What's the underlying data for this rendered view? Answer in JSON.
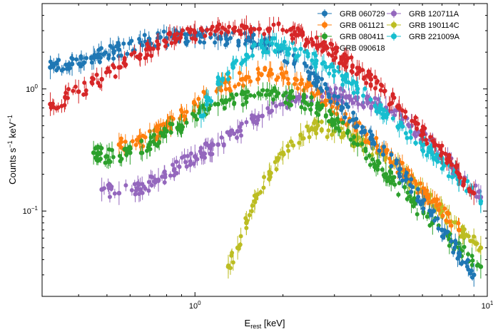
{
  "chart_data": {
    "type": "scatter",
    "title": "",
    "xlabel": {
      "main": "E",
      "sub": "rest",
      "unit": " [keV]"
    },
    "ylabel": {
      "main": "Counts s",
      "sup1": "−1",
      "mid": " keV",
      "sup2": "−1"
    },
    "xscale": "log",
    "yscale": "log",
    "xlim": [
      0.3,
      10
    ],
    "ylim": [
      0.02,
      5
    ],
    "x_ticks": [
      {
        "value": 1,
        "base": "10",
        "exp": "0"
      },
      {
        "value": 10,
        "base": "10",
        "exp": "1"
      }
    ],
    "y_ticks": [
      {
        "value": 0.1,
        "base": "10",
        "exp": "−1"
      },
      {
        "value": 1,
        "base": "10",
        "exp": "0"
      }
    ],
    "legend_position": "top-right",
    "series": [
      {
        "name": "GRB 060729",
        "color": "#1f77b4",
        "x": [
          0.32,
          0.38,
          0.45,
          0.55,
          0.65,
          0.8,
          1.0,
          1.2,
          1.5,
          1.8,
          2.2,
          2.6,
          3.2,
          4.0,
          5.0,
          6.0,
          7.0,
          8.0,
          9.0
        ],
        "y": [
          1.5,
          1.6,
          1.8,
          2.1,
          2.4,
          2.6,
          2.7,
          2.6,
          2.5,
          2.3,
          1.7,
          1.2,
          0.7,
          0.4,
          0.22,
          0.12,
          0.07,
          0.045,
          0.03
        ]
      },
      {
        "name": "GRB 061121",
        "color": "#ff7f0e",
        "x": [
          0.55,
          0.65,
          0.75,
          0.9,
          1.0,
          1.2,
          1.5,
          1.8,
          2.0,
          2.3,
          2.8,
          3.5,
          4.5,
          5.5,
          6.5,
          8.0
        ],
        "y": [
          0.35,
          0.38,
          0.45,
          0.6,
          0.75,
          1.0,
          1.25,
          1.35,
          1.3,
          1.1,
          0.8,
          0.5,
          0.3,
          0.18,
          0.12,
          0.07
        ]
      },
      {
        "name": "GRB 080411",
        "color": "#2ca02c",
        "x": [
          0.45,
          0.5,
          0.6,
          0.7,
          0.8,
          0.9,
          1.0,
          1.2,
          1.5,
          1.8,
          2.1,
          2.5,
          3.0,
          3.6,
          4.5,
          5.5,
          6.5,
          8.0,
          9.5
        ],
        "y": [
          0.3,
          0.28,
          0.3,
          0.35,
          0.45,
          0.5,
          0.6,
          0.75,
          0.85,
          0.9,
          0.85,
          0.75,
          0.55,
          0.35,
          0.2,
          0.12,
          0.08,
          0.05,
          0.035
        ]
      },
      {
        "name": "GRB 090618",
        "color": "#d62728",
        "x": [
          0.32,
          0.36,
          0.4,
          0.48,
          0.55,
          0.65,
          0.75,
          0.85,
          1.0,
          1.2,
          1.5,
          1.8,
          2.2,
          2.7,
          3.3,
          4.0,
          5.0,
          6.0,
          7.0,
          8.0,
          9.0
        ],
        "y": [
          0.75,
          0.85,
          0.95,
          1.2,
          1.5,
          1.9,
          2.3,
          2.6,
          2.9,
          3.1,
          3.2,
          3.1,
          2.8,
          2.3,
          1.7,
          1.2,
          0.7,
          0.45,
          0.3,
          0.2,
          0.14
        ]
      },
      {
        "name": "GRB 120711A",
        "color": "#9467bd",
        "x": [
          0.48,
          0.55,
          0.65,
          0.75,
          0.85,
          1.0,
          1.2,
          1.4,
          1.7,
          2.0,
          2.5,
          3.0,
          3.6,
          4.5,
          5.5,
          6.5,
          8.0,
          9.5
        ],
        "y": [
          0.15,
          0.14,
          0.15,
          0.18,
          0.22,
          0.28,
          0.35,
          0.45,
          0.6,
          0.75,
          0.85,
          0.9,
          0.85,
          0.7,
          0.5,
          0.35,
          0.2,
          0.13
        ]
      },
      {
        "name": "GRB 190114C",
        "color": "#bcbd22",
        "x": [
          1.3,
          1.4,
          1.5,
          1.6,
          1.8,
          2.0,
          2.3,
          2.6,
          3.0,
          3.5,
          4.2,
          5.0,
          6.0,
          7.0,
          8.0,
          9.5
        ],
        "y": [
          0.035,
          0.05,
          0.08,
          0.12,
          0.2,
          0.3,
          0.42,
          0.48,
          0.45,
          0.38,
          0.3,
          0.22,
          0.15,
          0.1,
          0.07,
          0.05
        ]
      },
      {
        "name": "GRB 221009A",
        "color": "#17becf",
        "x": [
          1.05,
          1.1,
          1.2,
          1.35,
          1.5,
          1.7,
          1.9,
          2.2,
          2.6,
          3.0,
          3.6,
          4.3,
          5.0,
          6.0,
          7.0,
          8.0,
          9.5
        ],
        "y": [
          0.6,
          0.8,
          1.1,
          1.5,
          1.9,
          2.2,
          2.3,
          2.1,
          1.7,
          1.4,
          1.0,
          0.7,
          0.5,
          0.35,
          0.25,
          0.18,
          0.12
        ]
      }
    ]
  }
}
